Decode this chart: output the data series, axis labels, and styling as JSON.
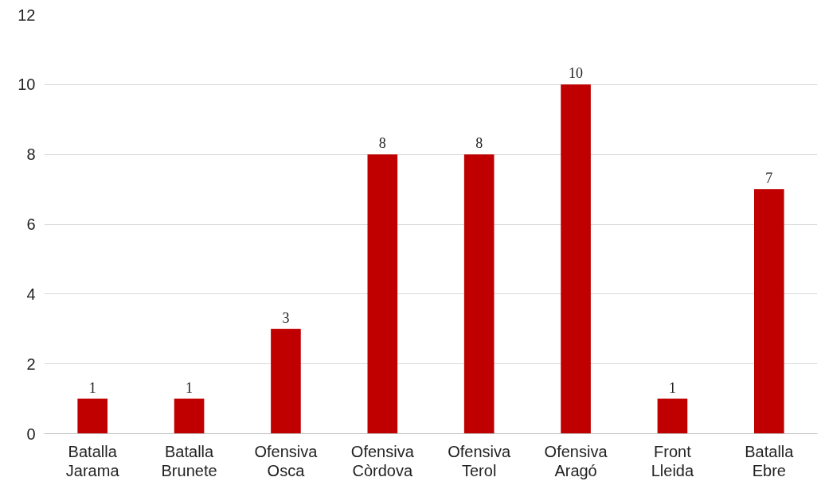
{
  "chart_data": {
    "type": "bar",
    "categories": [
      "Batalla Jarama",
      "Batalla Brunete",
      "Ofensiva Osca",
      "Ofensiva Còrdova",
      "Ofensiva Terol",
      "Ofensiva Aragó",
      "Front Lleida",
      "Batalla Ebre"
    ],
    "values": [
      1,
      1,
      3,
      8,
      8,
      10,
      1,
      7
    ],
    "color": "#c00000",
    "ylim": [
      0,
      12
    ],
    "yticks": [
      0,
      2,
      4,
      6,
      8,
      10,
      12
    ],
    "grid": "y",
    "data_labels": true
  }
}
